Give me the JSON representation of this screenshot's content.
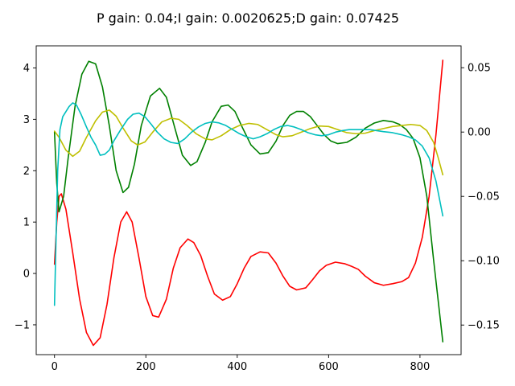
{
  "chart_data": {
    "type": "line",
    "title": "P gain: 0.04;I gain: 0.0020625;D gain: 0.07425",
    "xlabel": "",
    "ylabel": "",
    "xlim": [
      -40,
      890
    ],
    "ylim_left": [
      -1.58,
      4.43
    ],
    "ylim_right": [
      -0.173,
      0.067
    ],
    "x_ticks": [
      0,
      200,
      400,
      600,
      800
    ],
    "x_tick_labels": [
      "0",
      "200",
      "400",
      "600",
      "800"
    ],
    "y_left_ticks": [
      -1,
      0,
      1,
      2,
      3,
      4
    ],
    "y_left_tick_labels": [
      "−1",
      "0",
      "1",
      "2",
      "3",
      "4"
    ],
    "y_right_ticks": [
      -0.15,
      -0.1,
      -0.05,
      0.0,
      0.05
    ],
    "y_right_tick_labels": [
      "−0.15",
      "−0.10",
      "−0.05",
      "0.00",
      "0.05"
    ],
    "grid": false,
    "legend": "none",
    "series": [
      {
        "color": "#ff0000",
        "axis": "left",
        "points": [
          [
            0,
            0.18
          ],
          [
            5,
            1.0
          ],
          [
            10,
            1.5
          ],
          [
            15,
            1.55
          ],
          [
            25,
            1.25
          ],
          [
            40,
            0.4
          ],
          [
            55,
            -0.5
          ],
          [
            70,
            -1.15
          ],
          [
            85,
            -1.4
          ],
          [
            100,
            -1.25
          ],
          [
            115,
            -0.6
          ],
          [
            130,
            0.3
          ],
          [
            145,
            1.0
          ],
          [
            158,
            1.2
          ],
          [
            170,
            1.0
          ],
          [
            185,
            0.3
          ],
          [
            200,
            -0.45
          ],
          [
            215,
            -0.82
          ],
          [
            228,
            -0.85
          ],
          [
            245,
            -0.5
          ],
          [
            260,
            0.1
          ],
          [
            275,
            0.5
          ],
          [
            292,
            0.67
          ],
          [
            305,
            0.6
          ],
          [
            320,
            0.35
          ],
          [
            335,
            -0.05
          ],
          [
            350,
            -0.4
          ],
          [
            368,
            -0.52
          ],
          [
            385,
            -0.45
          ],
          [
            400,
            -0.2
          ],
          [
            415,
            0.1
          ],
          [
            430,
            0.33
          ],
          [
            450,
            0.42
          ],
          [
            468,
            0.4
          ],
          [
            485,
            0.2
          ],
          [
            500,
            -0.05
          ],
          [
            515,
            -0.25
          ],
          [
            530,
            -0.32
          ],
          [
            550,
            -0.28
          ],
          [
            565,
            -0.12
          ],
          [
            580,
            0.05
          ],
          [
            595,
            0.16
          ],
          [
            615,
            0.22
          ],
          [
            635,
            0.19
          ],
          [
            650,
            0.14
          ],
          [
            665,
            0.08
          ],
          [
            680,
            -0.05
          ],
          [
            700,
            -0.18
          ],
          [
            720,
            -0.23
          ],
          [
            740,
            -0.2
          ],
          [
            760,
            -0.16
          ],
          [
            775,
            -0.08
          ],
          [
            790,
            0.2
          ],
          [
            805,
            0.7
          ],
          [
            820,
            1.5
          ],
          [
            835,
            2.7
          ],
          [
            850,
            4.15
          ]
        ]
      },
      {
        "color": "#008000",
        "axis": "right",
        "points": [
          [
            0,
            0.0
          ],
          [
            5,
            -0.04
          ],
          [
            10,
            -0.062
          ],
          [
            20,
            -0.05
          ],
          [
            30,
            -0.02
          ],
          [
            45,
            0.02
          ],
          [
            60,
            0.045
          ],
          [
            75,
            0.055
          ],
          [
            90,
            0.053
          ],
          [
            105,
            0.035
          ],
          [
            120,
            0.005
          ],
          [
            135,
            -0.03
          ],
          [
            150,
            -0.047
          ],
          [
            162,
            -0.043
          ],
          [
            175,
            -0.025
          ],
          [
            190,
            0.005
          ],
          [
            210,
            0.028
          ],
          [
            230,
            0.034
          ],
          [
            245,
            0.027
          ],
          [
            262,
            0.005
          ],
          [
            280,
            -0.018
          ],
          [
            298,
            -0.026
          ],
          [
            312,
            -0.023
          ],
          [
            330,
            -0.008
          ],
          [
            345,
            0.008
          ],
          [
            365,
            0.02
          ],
          [
            380,
            0.021
          ],
          [
            395,
            0.016
          ],
          [
            412,
            0.003
          ],
          [
            430,
            -0.01
          ],
          [
            450,
            -0.017
          ],
          [
            468,
            -0.016
          ],
          [
            485,
            -0.007
          ],
          [
            500,
            0.005
          ],
          [
            515,
            0.013
          ],
          [
            530,
            0.016
          ],
          [
            545,
            0.016
          ],
          [
            560,
            0.012
          ],
          [
            575,
            0.005
          ],
          [
            590,
            -0.002
          ],
          [
            605,
            -0.007
          ],
          [
            620,
            -0.009
          ],
          [
            640,
            -0.008
          ],
          [
            660,
            -0.004
          ],
          [
            680,
            0.003
          ],
          [
            700,
            0.007
          ],
          [
            720,
            0.009
          ],
          [
            740,
            0.008
          ],
          [
            755,
            0.006
          ],
          [
            770,
            0.002
          ],
          [
            785,
            -0.005
          ],
          [
            800,
            -0.02
          ],
          [
            815,
            -0.05
          ],
          [
            830,
            -0.1
          ],
          [
            850,
            -0.163
          ]
        ]
      },
      {
        "color": "#bfbf00",
        "axis": "left",
        "points": [
          [
            0,
            2.77
          ],
          [
            10,
            2.65
          ],
          [
            25,
            2.4
          ],
          [
            40,
            2.28
          ],
          [
            55,
            2.38
          ],
          [
            70,
            2.65
          ],
          [
            90,
            2.97
          ],
          [
            105,
            3.14
          ],
          [
            120,
            3.18
          ],
          [
            135,
            3.06
          ],
          [
            150,
            2.83
          ],
          [
            168,
            2.58
          ],
          [
            182,
            2.5
          ],
          [
            198,
            2.56
          ],
          [
            215,
            2.75
          ],
          [
            235,
            2.95
          ],
          [
            255,
            3.02
          ],
          [
            272,
            3.0
          ],
          [
            290,
            2.88
          ],
          [
            310,
            2.72
          ],
          [
            330,
            2.62
          ],
          [
            345,
            2.6
          ],
          [
            365,
            2.68
          ],
          [
            385,
            2.8
          ],
          [
            405,
            2.88
          ],
          [
            425,
            2.92
          ],
          [
            445,
            2.9
          ],
          [
            465,
            2.8
          ],
          [
            485,
            2.7
          ],
          [
            500,
            2.66
          ],
          [
            520,
            2.68
          ],
          [
            540,
            2.75
          ],
          [
            560,
            2.82
          ],
          [
            580,
            2.87
          ],
          [
            600,
            2.86
          ],
          [
            620,
            2.8
          ],
          [
            640,
            2.74
          ],
          [
            660,
            2.72
          ],
          [
            680,
            2.73
          ],
          [
            700,
            2.78
          ],
          [
            720,
            2.82
          ],
          [
            740,
            2.86
          ],
          [
            760,
            2.88
          ],
          [
            780,
            2.9
          ],
          [
            800,
            2.88
          ],
          [
            815,
            2.78
          ],
          [
            830,
            2.55
          ],
          [
            840,
            2.25
          ],
          [
            850,
            1.92
          ]
        ]
      },
      {
        "color": "#00bfbf",
        "axis": "left",
        "points": [
          [
            0,
            -0.62
          ],
          [
            3,
            0.5
          ],
          [
            7,
            2.0
          ],
          [
            12,
            2.8
          ],
          [
            18,
            3.05
          ],
          [
            25,
            3.15
          ],
          [
            32,
            3.25
          ],
          [
            40,
            3.32
          ],
          [
            48,
            3.28
          ],
          [
            58,
            3.1
          ],
          [
            70,
            2.85
          ],
          [
            80,
            2.65
          ],
          [
            90,
            2.5
          ],
          [
            100,
            2.3
          ],
          [
            110,
            2.32
          ],
          [
            120,
            2.4
          ],
          [
            130,
            2.58
          ],
          [
            145,
            2.8
          ],
          [
            160,
            3.0
          ],
          [
            172,
            3.1
          ],
          [
            185,
            3.12
          ],
          [
            198,
            3.05
          ],
          [
            212,
            2.9
          ],
          [
            225,
            2.75
          ],
          [
            240,
            2.62
          ],
          [
            255,
            2.55
          ],
          [
            270,
            2.53
          ],
          [
            285,
            2.62
          ],
          [
            300,
            2.75
          ],
          [
            315,
            2.85
          ],
          [
            330,
            2.92
          ],
          [
            345,
            2.95
          ],
          [
            360,
            2.93
          ],
          [
            375,
            2.88
          ],
          [
            390,
            2.8
          ],
          [
            405,
            2.72
          ],
          [
            420,
            2.66
          ],
          [
            435,
            2.62
          ],
          [
            450,
            2.66
          ],
          [
            465,
            2.72
          ],
          [
            480,
            2.8
          ],
          [
            495,
            2.86
          ],
          [
            510,
            2.88
          ],
          [
            525,
            2.85
          ],
          [
            540,
            2.8
          ],
          [
            555,
            2.74
          ],
          [
            570,
            2.7
          ],
          [
            585,
            2.68
          ],
          [
            600,
            2.7
          ],
          [
            615,
            2.75
          ],
          [
            630,
            2.78
          ],
          [
            645,
            2.8
          ],
          [
            660,
            2.8
          ],
          [
            675,
            2.8
          ],
          [
            690,
            2.8
          ],
          [
            705,
            2.78
          ],
          [
            720,
            2.76
          ],
          [
            740,
            2.74
          ],
          [
            760,
            2.7
          ],
          [
            775,
            2.66
          ],
          [
            790,
            2.6
          ],
          [
            805,
            2.48
          ],
          [
            820,
            2.25
          ],
          [
            835,
            1.8
          ],
          [
            850,
            1.12
          ]
        ]
      }
    ]
  }
}
